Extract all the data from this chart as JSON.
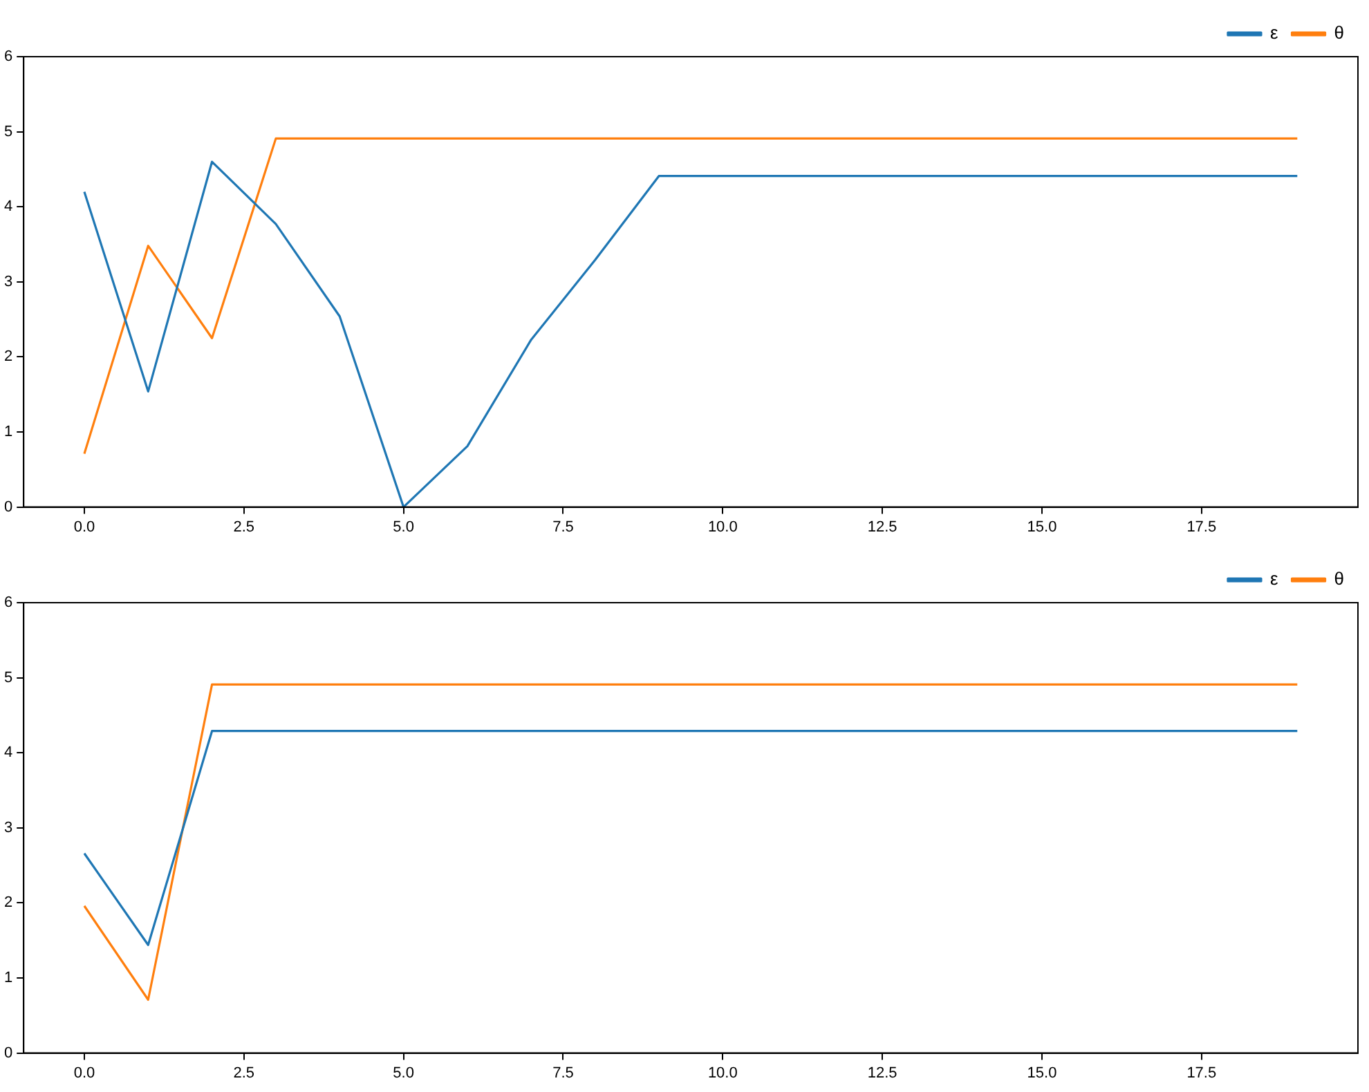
{
  "chart_data": [
    {
      "type": "line",
      "x": [
        0,
        1,
        2,
        3,
        4,
        5,
        6,
        7,
        8,
        9,
        10,
        11,
        12,
        13,
        14,
        15,
        16,
        17,
        18,
        19
      ],
      "xlim": [
        -0.95,
        19.95
      ],
      "xticks": [
        {
          "value": 0,
          "label": "0.0"
        },
        {
          "value": 2.5,
          "label": "2.5"
        },
        {
          "value": 5,
          "label": "5.0"
        },
        {
          "value": 7.5,
          "label": "7.5"
        },
        {
          "value": 10,
          "label": "10.0"
        },
        {
          "value": 12.5,
          "label": "12.5"
        },
        {
          "value": 15,
          "label": "15.0"
        },
        {
          "value": 17.5,
          "label": "17.5"
        }
      ],
      "ylim": [
        0,
        6
      ],
      "yticks": [
        0,
        1,
        2,
        3,
        4,
        5,
        6
      ],
      "grid": false,
      "legend": "top right",
      "series": [
        {
          "name": "ε",
          "color": "#1f77b4",
          "values": [
            4.2,
            1.54,
            4.6,
            3.77,
            2.54,
            0,
            0.81,
            2.23,
            3.29,
            4.41,
            4.41,
            4.41,
            4.41,
            4.41,
            4.41,
            4.41,
            4.41,
            4.41,
            4.41,
            4.41
          ]
        },
        {
          "name": "θ",
          "color": "#ff7f0e",
          "values": [
            0.71,
            3.48,
            2.25,
            4.91,
            4.91,
            4.91,
            4.91,
            4.91,
            4.91,
            4.91,
            4.91,
            4.91,
            4.91,
            4.91,
            4.91,
            4.91,
            4.91,
            4.91,
            4.91,
            4.91
          ]
        }
      ]
    },
    {
      "type": "line",
      "x": [
        0,
        1,
        2,
        3,
        4,
        5,
        6,
        7,
        8,
        9,
        10,
        11,
        12,
        13,
        14,
        15,
        16,
        17,
        18,
        19
      ],
      "xlim": [
        -0.95,
        19.95
      ],
      "xticks": [
        {
          "value": 0,
          "label": "0.0"
        },
        {
          "value": 2.5,
          "label": "2.5"
        },
        {
          "value": 5,
          "label": "5.0"
        },
        {
          "value": 7.5,
          "label": "7.5"
        },
        {
          "value": 10,
          "label": "10.0"
        },
        {
          "value": 12.5,
          "label": "12.5"
        },
        {
          "value": 15,
          "label": "15.0"
        },
        {
          "value": 17.5,
          "label": "17.5"
        }
      ],
      "ylim": [
        0,
        6
      ],
      "yticks": [
        0,
        1,
        2,
        3,
        4,
        5,
        6
      ],
      "grid": false,
      "legend": "top right",
      "series": [
        {
          "name": "ε",
          "color": "#1f77b4",
          "values": [
            2.66,
            1.44,
            4.29,
            4.29,
            4.29,
            4.29,
            4.29,
            4.29,
            4.29,
            4.29,
            4.29,
            4.29,
            4.29,
            4.29,
            4.29,
            4.29,
            4.29,
            4.29,
            4.29,
            4.29
          ]
        },
        {
          "name": "θ",
          "color": "#ff7f0e",
          "values": [
            1.96,
            0.71,
            4.91,
            4.91,
            4.91,
            4.91,
            4.91,
            4.91,
            4.91,
            4.91,
            4.91,
            4.91,
            4.91,
            4.91,
            4.91,
            4.91,
            4.91,
            4.91,
            4.91,
            4.91
          ]
        }
      ]
    }
  ]
}
